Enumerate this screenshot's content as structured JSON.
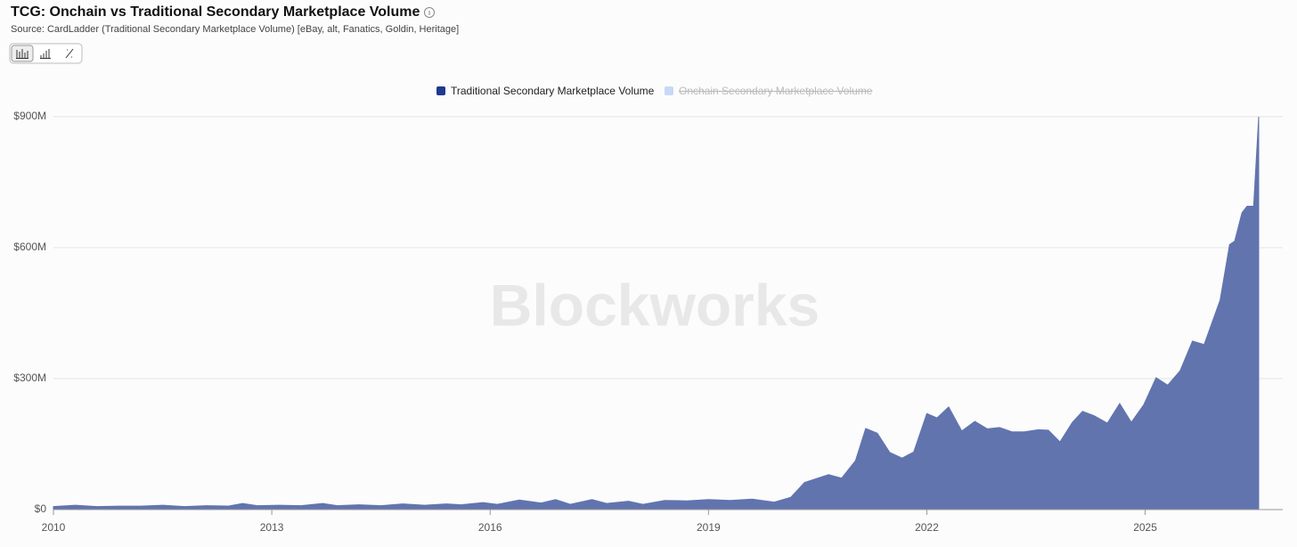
{
  "chart_data": {
    "type": "area",
    "title": "TCG: Onchain vs Traditional Secondary Marketplace Volume",
    "subtitle": "Source: CardLadder (Traditional Secondary Marketplace Volume) [eBay, alt, Fanatics, Goldin, Heritage]",
    "watermark": "Blockworks",
    "x": [
      2010.0,
      2010.3,
      2010.6,
      2010.9,
      2011.2,
      2011.5,
      2011.8,
      2012.1,
      2012.4,
      2012.6,
      2012.8,
      2013.1,
      2013.4,
      2013.7,
      2013.9,
      2014.2,
      2014.5,
      2014.8,
      2015.1,
      2015.4,
      2015.6,
      2015.9,
      2016.1,
      2016.4,
      2016.7,
      2016.9,
      2017.1,
      2017.4,
      2017.6,
      2017.9,
      2018.1,
      2018.4,
      2018.7,
      2019.0,
      2019.3,
      2019.6,
      2019.9,
      2020.13,
      2020.32,
      2020.65,
      2020.83,
      2021.02,
      2021.16,
      2021.32,
      2021.49,
      2021.66,
      2021.82,
      2022.0,
      2022.14,
      2022.3,
      2022.48,
      2022.66,
      2022.83,
      2023.0,
      2023.17,
      2023.34,
      2023.53,
      2023.67,
      2023.83,
      2024.0,
      2024.14,
      2024.3,
      2024.48,
      2024.65,
      2024.81,
      2024.98,
      2025.15,
      2025.31,
      2025.48,
      2025.65,
      2025.81,
      2026.03,
      2026.16,
      2026.23,
      2026.33,
      2026.4,
      2026.49,
      2026.56
    ],
    "series": [
      {
        "name": "Traditional Secondary Marketplace Volume",
        "color": "#6174ae",
        "legend_color": "#1f3a8f",
        "values": [
          7000000,
          10000000,
          7000000,
          8000000,
          8000000,
          10000000,
          7000000,
          9000000,
          8000000,
          14000000,
          9000000,
          10000000,
          9000000,
          14000000,
          9000000,
          11000000,
          9000000,
          13000000,
          10000000,
          13000000,
          11000000,
          16000000,
          12000000,
          22000000,
          15000000,
          23000000,
          12000000,
          23000000,
          14000000,
          19000000,
          12000000,
          21000000,
          20000000,
          23000000,
          21000000,
          24000000,
          17000000,
          28000000,
          62000000,
          80000000,
          72000000,
          112000000,
          186000000,
          175000000,
          131000000,
          118000000,
          132000000,
          220000000,
          210000000,
          235000000,
          180000000,
          202000000,
          185000000,
          188000000,
          178000000,
          178000000,
          183000000,
          182000000,
          155000000,
          200000000,
          225000000,
          215000000,
          198000000,
          243000000,
          200000000,
          240000000,
          302000000,
          285000000,
          318000000,
          386000000,
          378000000,
          480000000,
          607000000,
          615000000,
          680000000,
          695000000,
          695000000,
          900000000
        ]
      }
    ],
    "hidden_series": [
      {
        "name": "Onchain Secondary Marketplace Volume",
        "color": "#c8d8f8"
      }
    ],
    "xlim": [
      2010,
      2026.56
    ],
    "xticks": [
      2010,
      2013,
      2016,
      2019,
      2022,
      2025
    ],
    "ylim": [
      0,
      900000000
    ],
    "yticks": [
      {
        "value": 0,
        "label": "$0"
      },
      {
        "value": 300000000,
        "label": "$300M"
      },
      {
        "value": 600000000,
        "label": "$600M"
      },
      {
        "value": 900000000,
        "label": "$900M"
      }
    ],
    "grid": true
  }
}
